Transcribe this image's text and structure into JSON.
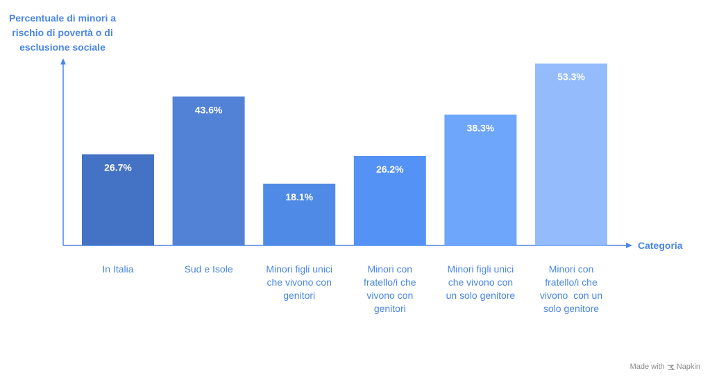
{
  "chart_data": {
    "type": "bar",
    "ylabel": [
      "Percentuale di minori a",
      "rischio di povertà o di",
      "esclusione sociale"
    ],
    "xlabel": "Categoria",
    "categories": [
      [
        "In Italia"
      ],
      [
        "Sud e Isole"
      ],
      [
        "Minori figli unici",
        "che vivono con",
        "genitori"
      ],
      [
        "Minori con",
        "fratello/i che",
        "vivono con",
        "genitori"
      ],
      [
        "Minori figli unici",
        "che vivono con",
        "un solo genitore"
      ],
      [
        "Minori con",
        "fratello/i che",
        "vivono  con un",
        "solo genitore"
      ]
    ],
    "values": [
      26.7,
      43.6,
      18.1,
      26.2,
      38.3,
      53.3
    ],
    "value_labels": [
      "26.7%",
      "43.6%",
      "18.1%",
      "26.2%",
      "38.3%",
      "53.3%"
    ],
    "colors": [
      "#4472c4",
      "#5182d6",
      "#4f8ae6",
      "#5592f6",
      "#6ea6fb",
      "#94bcfd"
    ],
    "ylim": [
      0,
      60
    ],
    "grid": false,
    "legend": "none"
  },
  "watermark": {
    "prefix": "Made with",
    "brand": "Napkin",
    "icon": "napkin-logo-icon"
  }
}
